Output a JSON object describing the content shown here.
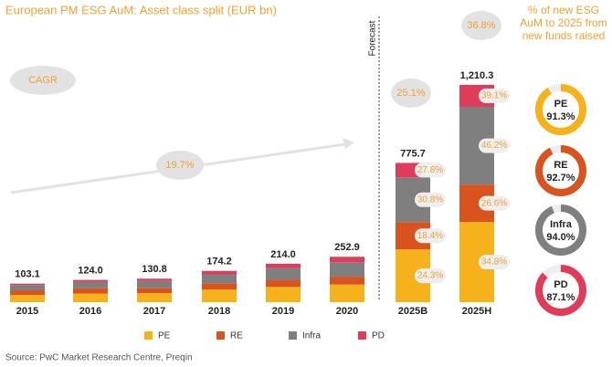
{
  "chart_data": {
    "type": "bar",
    "title": "European PM ESG AuM: Asset class split (EUR bn)",
    "categories": [
      "2015",
      "2016",
      "2017",
      "2018",
      "2019",
      "2020",
      "2025B",
      "2025H"
    ],
    "totals": [
      103.1,
      124.0,
      130.8,
      174.2,
      214.0,
      252.9,
      775.7,
      1210.3
    ],
    "total_labels": [
      "103.1",
      "124.0",
      "130.8",
      "174.2",
      "214.0",
      "252.9",
      "775.7",
      "1,210.3"
    ],
    "series": [
      {
        "name": "PE",
        "color": "#f5b21b",
        "values": [
          40,
          48,
          50,
          70,
          85,
          98,
          294,
          447
        ],
        "cagr_labels": [
          null,
          null,
          null,
          null,
          null,
          null,
          "24.3%",
          "34.8%"
        ]
      },
      {
        "name": "RE",
        "color": "#d9531e",
        "values": [
          26,
          30,
          30,
          35,
          40,
          44,
          152,
          208
        ],
        "cagr_labels": [
          null,
          null,
          null,
          null,
          null,
          null,
          "18.4%",
          "26.6%"
        ]
      },
      {
        "name": "Infra",
        "color": "#7f7f7f",
        "values": [
          29,
          36,
          38,
          50,
          65,
          80,
          249,
          433
        ],
        "cagr_labels": [
          null,
          null,
          null,
          null,
          null,
          null,
          "30.8%",
          "46.2%"
        ]
      },
      {
        "name": "PD",
        "color": "#e03c5a",
        "values": [
          8.1,
          10,
          12.8,
          19.2,
          24,
          30.9,
          80.7,
          122.3
        ],
        "cagr_labels": [
          null,
          null,
          null,
          null,
          null,
          null,
          "27.8%",
          "39.1%"
        ]
      }
    ],
    "forecast_label": "Forecast",
    "cagr": {
      "label": "CAGR",
      "historical": "19.7%",
      "budget": "25.1%",
      "high": "36.8%"
    },
    "new_funds": {
      "title_lines": [
        "% of new ESG",
        "AuM to 2025 from",
        "new funds raised"
      ],
      "items": [
        {
          "name": "PE",
          "value": 91.3,
          "label": "91.3%"
        },
        {
          "name": "RE",
          "value": 92.7,
          "label": "92.7%"
        },
        {
          "name": "Infra",
          "value": 94.0,
          "label": "94.0%"
        },
        {
          "name": "PD",
          "value": 87.1,
          "label": "87.1%"
        }
      ]
    },
    "source": "Source: PwC Market Research Centre, Preqin"
  }
}
